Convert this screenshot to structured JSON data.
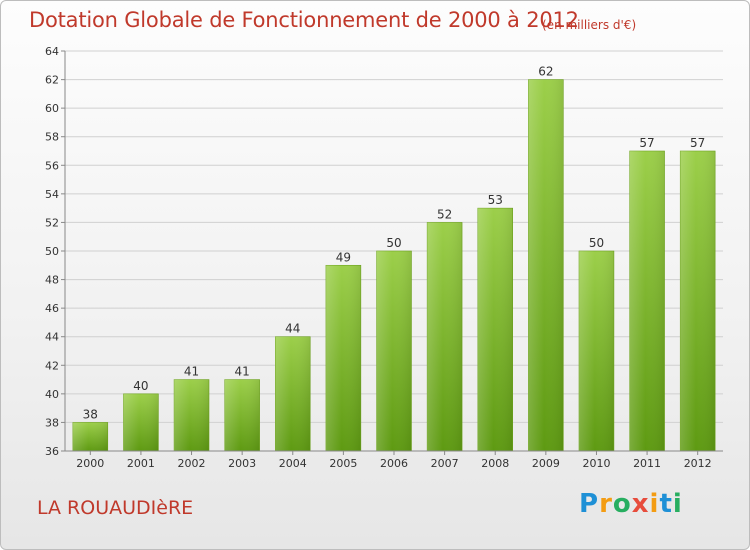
{
  "header": {
    "title": "Dotation Globale de Fonctionnement de 2000 à 2012",
    "unit_note": "(en milliers d'€)"
  },
  "footer": {
    "commune": "LA ROUAUDIèRE",
    "brand_letters": [
      "P",
      "r",
      "o",
      "x",
      "i",
      "t",
      "i"
    ],
    "brand_colors": [
      "#1e90d6",
      "#f39c12",
      "#27ae60",
      "#e74c3c",
      "#f39c12",
      "#1e90d6",
      "#27ae60"
    ]
  },
  "chart_data": {
    "type": "bar",
    "title": "Dotation Globale de Fonctionnement de 2000 à 2012",
    "subtitle": "(en milliers d'€)",
    "xlabel": "",
    "ylabel": "",
    "categories": [
      "2000",
      "2001",
      "2002",
      "2003",
      "2004",
      "2005",
      "2006",
      "2007",
      "2008",
      "2009",
      "2010",
      "2011",
      "2012"
    ],
    "values": [
      38,
      40,
      41,
      41,
      44,
      49,
      50,
      52,
      53,
      62,
      50,
      57,
      57
    ],
    "ylim": [
      36,
      64
    ],
    "yticks": [
      36,
      38,
      40,
      42,
      44,
      46,
      48,
      50,
      52,
      54,
      56,
      58,
      60,
      62,
      64
    ],
    "grid": true,
    "legend": "none",
    "colors": {
      "bar_top": "#9ccf4a",
      "bar_bottom": "#5e9a12",
      "grid": "#d0d0d0",
      "title": "#c0392b"
    }
  }
}
